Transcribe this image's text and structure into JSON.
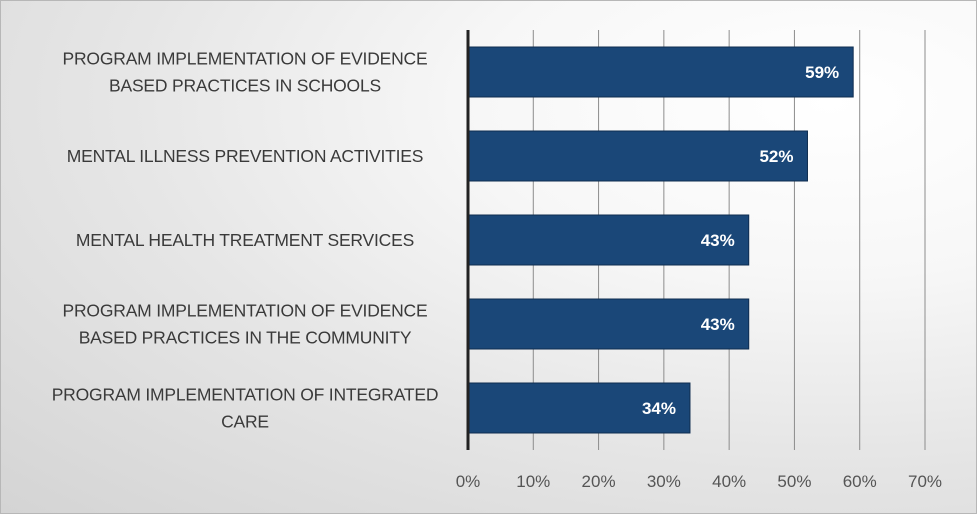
{
  "chart_data": {
    "type": "bar",
    "orientation": "horizontal",
    "categories": [
      [
        "PROGRAM IMPLEMENTATION OF EVIDENCE",
        "BASED PRACTICES IN SCHOOLS"
      ],
      [
        "MENTAL ILLNESS PREVENTION ACTIVITIES"
      ],
      [
        "MENTAL HEALTH TREATMENT SERVICES"
      ],
      [
        "PROGRAM IMPLEMENTATION OF EVIDENCE",
        "BASED PRACTICES IN THE COMMUNITY"
      ],
      [
        "PROGRAM IMPLEMENTATION OF INTEGRATED",
        "CARE"
      ]
    ],
    "values": [
      59,
      52,
      43,
      43,
      34
    ],
    "value_labels": [
      "59%",
      "52%",
      "43%",
      "43%",
      "34%"
    ],
    "xlim": [
      0,
      70
    ],
    "xticks": [
      0,
      10,
      20,
      30,
      40,
      50,
      60,
      70
    ],
    "xtick_labels": [
      "0%",
      "10%",
      "20%",
      "30%",
      "40%",
      "50%",
      "60%",
      "70%"
    ],
    "grid": true,
    "legend": false,
    "colors": {
      "bar": "#1a4778",
      "value_text": "#ffffff"
    }
  }
}
